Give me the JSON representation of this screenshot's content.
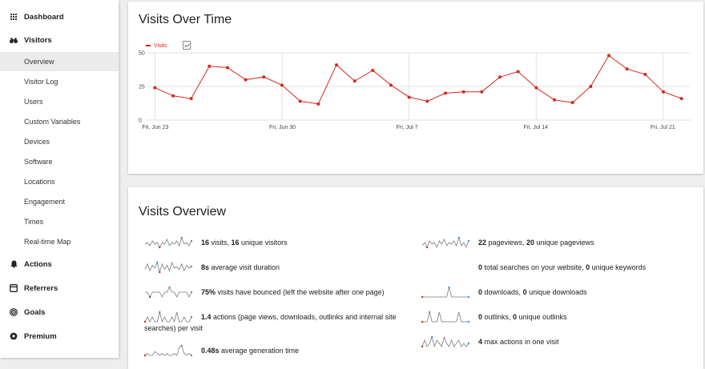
{
  "sidebar": {
    "categories": {
      "dashboard": {
        "label": "Dashboard",
        "icon": "grid-icon"
      },
      "visitors": {
        "label": "Visitors",
        "icon": "binoculars-icon"
      },
      "actions": {
        "label": "Actions",
        "icon": "bell-icon"
      },
      "referrers": {
        "label": "Referrers",
        "icon": "window-icon"
      },
      "goals": {
        "label": "Goals",
        "icon": "target-icon"
      },
      "premium": {
        "label": "Premium",
        "icon": "dot-circle-icon"
      }
    },
    "visitors_items": [
      "Overview",
      "Visitor Log",
      "Users",
      "Custom Variables",
      "Devices",
      "Software",
      "Locations",
      "Engagement",
      "Times",
      "Real-time Map"
    ],
    "active_item": "Overview"
  },
  "graph_card": {
    "title": "Visits Over Time",
    "legend_label": "Visits",
    "export_icon": "image-export-icon"
  },
  "chart_data": {
    "type": "line",
    "title": "Visits Over Time",
    "series": [
      {
        "name": "Visits",
        "color": "#d4291f",
        "values": [
          24,
          18,
          16,
          40,
          39,
          30,
          32,
          26,
          14,
          12,
          41,
          29,
          37,
          26,
          17,
          14,
          20,
          21,
          21,
          32,
          36,
          24,
          15,
          13,
          25,
          48,
          38,
          34,
          21,
          16
        ]
      }
    ],
    "x_start": "Jun 23",
    "x_end": "Jul 22",
    "x_tick_labels": [
      "Fri, Jun 23",
      "Fri, Jun 30",
      "Fri, Jul 7",
      "Fri, Jul 14",
      "Fri, Jul 21"
    ],
    "y_ticks": [
      0,
      25,
      50
    ],
    "ylim": [
      0,
      50
    ],
    "grid": true
  },
  "overview_card": {
    "title": "Visits Overview",
    "left": [
      {
        "bold1": "16",
        "text1": " visits, ",
        "bold2": "16",
        "text2": " unique visitors",
        "spark": [
          5,
          6,
          4,
          7,
          5,
          6,
          3,
          6,
          5,
          8,
          4,
          6,
          5,
          7,
          4,
          9,
          5,
          6,
          4,
          7
        ]
      },
      {
        "bold1": "8s",
        "text1": " average visit duration",
        "bold2": "",
        "text2": "",
        "spark": [
          4,
          8,
          3,
          7,
          5,
          9,
          2,
          8,
          4,
          7,
          3,
          9,
          5,
          6,
          4,
          8,
          3,
          7,
          5,
          6
        ]
      },
      {
        "bold1": "75%",
        "text1": " visits have bounced (left the website after one page)",
        "bold2": "",
        "text2": "",
        "spark": [
          5,
          5,
          4,
          5,
          5,
          5,
          5,
          4,
          5,
          5,
          6,
          5,
          5,
          4,
          5,
          5,
          5,
          5,
          4,
          5
        ]
      },
      {
        "bold1": "1.4",
        "text1": " actions (page views, downloads, outlinks and internal site",
        "bold2": "",
        "text2": "",
        "line2": "searches) per visit",
        "spark": [
          5,
          6,
          5,
          6,
          5,
          5,
          7,
          5,
          6,
          5,
          5,
          6,
          5,
          7,
          5,
          5,
          6,
          5,
          5,
          6
        ]
      },
      {
        "bold1": "0.48s",
        "text1": " average generation time",
        "bold2": "",
        "text2": "",
        "spark": [
          4,
          5,
          4,
          4,
          6,
          5,
          4,
          5,
          4,
          5,
          4,
          4,
          5,
          4,
          8,
          9,
          5,
          4,
          5,
          4
        ]
      }
    ],
    "right": [
      {
        "bold1": "22",
        "text1": " pageviews, ",
        "bold2": "20",
        "text2": " unique pageviews",
        "spark": [
          4,
          6,
          3,
          7,
          5,
          6,
          3,
          7,
          5,
          8,
          4,
          6,
          5,
          7,
          4,
          9,
          4,
          6,
          3,
          7
        ]
      },
      {
        "bold1": "0",
        "text1": " total searches on your website, ",
        "bold2": "0",
        "text2": " unique keywords",
        "spark": []
      },
      {
        "bold1": "0",
        "text1": " downloads, ",
        "bold2": "0",
        "text2": " unique downloads",
        "spark": [
          1,
          1,
          1,
          1,
          1,
          1,
          1,
          1,
          1,
          1,
          1,
          9,
          1,
          1,
          1,
          1,
          1,
          1,
          1,
          1
        ]
      },
      {
        "bold1": "0",
        "text1": " outlinks, ",
        "bold2": "0",
        "text2": " unique outlinks",
        "spark": [
          1,
          1,
          1,
          9,
          1,
          1,
          1,
          9,
          1,
          1,
          1,
          1,
          1,
          1,
          1,
          9,
          1,
          1,
          1,
          1
        ]
      },
      {
        "bold1": "4",
        "text1": " max actions in one visit",
        "bold2": "",
        "text2": "",
        "spark": [
          4,
          6,
          4,
          5,
          7,
          4,
          6,
          5,
          4,
          7,
          5,
          4,
          6,
          4,
          5,
          6,
          4,
          5,
          4,
          5
        ]
      }
    ]
  }
}
